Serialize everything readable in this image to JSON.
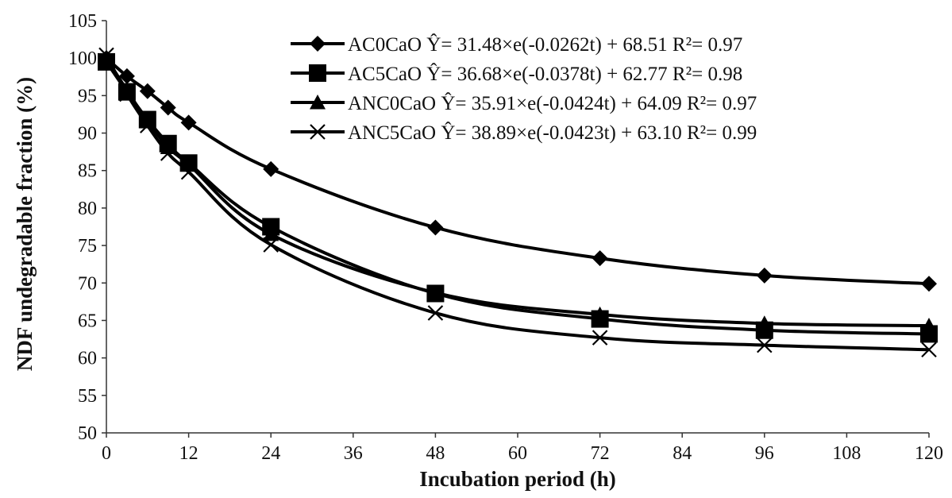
{
  "chart_data": {
    "type": "line",
    "xlabel": "Incubation period (h)",
    "ylabel": "NDF undegradable fraction (%)",
    "xlim": [
      0,
      120
    ],
    "ylim": [
      50,
      105
    ],
    "xticks": [
      "0",
      "12",
      "24",
      "36",
      "48",
      "60",
      "72",
      "84",
      "96",
      "108",
      "120"
    ],
    "yticks": [
      "50",
      "55",
      "60",
      "65",
      "70",
      "75",
      "80",
      "85",
      "90",
      "95",
      "100",
      "105"
    ],
    "grid": false,
    "legend_position": "top-right",
    "x": [
      0,
      3,
      6,
      9,
      12,
      24,
      48,
      72,
      96,
      120
    ],
    "series": [
      {
        "name": "AC0CaO",
        "equation": "Ŷ= 31.48×e(-0.0262t) + 68.51 R²= 0.97",
        "marker": "diamond",
        "values": [
          100.0,
          97.6,
          95.6,
          93.4,
          91.4,
          85.2,
          77.4,
          73.3,
          71.0,
          69.9
        ]
      },
      {
        "name": "AC5CaO",
        "equation": "Ŷ= 36.68×e(-0.0378t) + 62.77 R²= 0.98",
        "marker": "square",
        "values": [
          99.5,
          95.5,
          91.8,
          88.6,
          86.0,
          77.5,
          68.6,
          65.2,
          63.7,
          63.2
        ]
      },
      {
        "name": "ANC0CaO",
        "equation": "Ŷ= 35.91×e(-0.0424t) + 64.09 R²= 0.97",
        "marker": "triangle",
        "values": [
          100.0,
          95.7,
          91.6,
          88.1,
          85.8,
          76.5,
          68.7,
          65.8,
          64.6,
          64.3
        ]
      },
      {
        "name": "ANC5CaO",
        "equation": "Ŷ= 38.89×e(-0.0423t) + 63.10 R²= 0.99",
        "marker": "x",
        "values": [
          100.4,
          95.2,
          91.0,
          87.3,
          84.8,
          75.1,
          66.0,
          62.7,
          61.7,
          61.1
        ]
      }
    ]
  }
}
